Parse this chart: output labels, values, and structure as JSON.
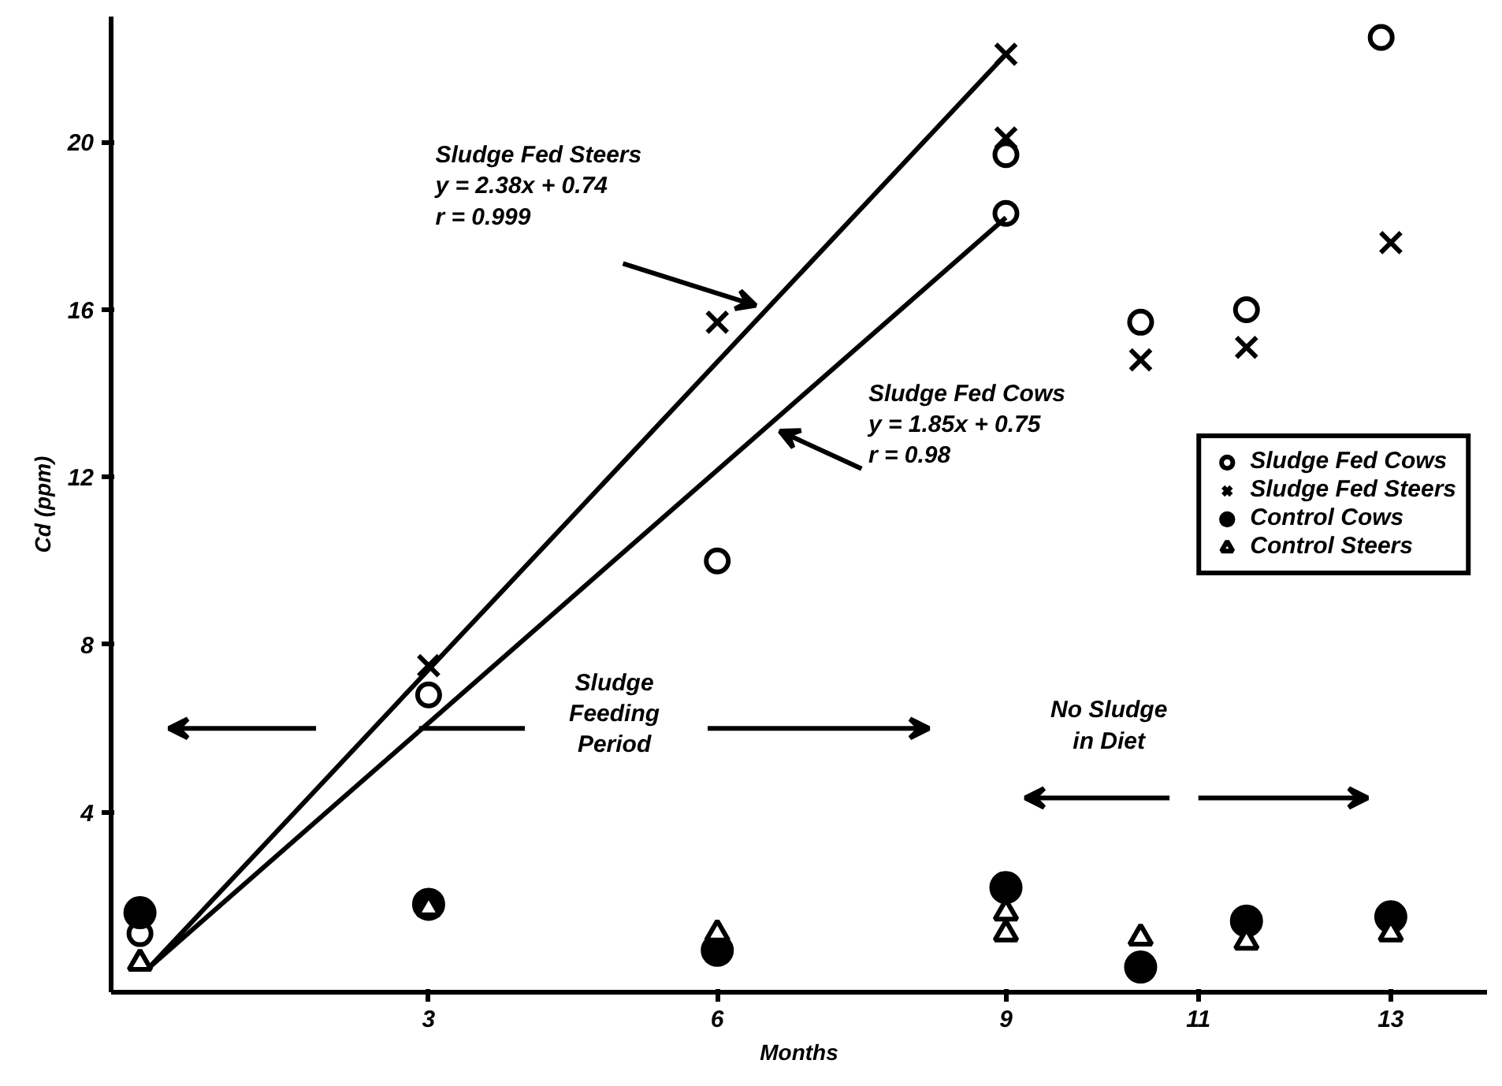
{
  "chart_data": {
    "type": "scatter",
    "xlabel": "Months",
    "ylabel": "Cd (ppm)",
    "xlim": [
      -0.3,
      14
    ],
    "ylim": [
      -0.3,
      23
    ],
    "xticks": [
      3,
      6,
      9,
      11,
      13
    ],
    "yticks": [
      4,
      8,
      12,
      16,
      20
    ],
    "grid": false,
    "legend": "right",
    "series": [
      {
        "name": "Sludge Fed Cows",
        "color": "#000000",
        "marker": "circle",
        "x": [
          0,
          3,
          6,
          9,
          9,
          10.4,
          11.5,
          12.9
        ],
        "values": [
          1.1,
          6.8,
          10.0,
          18.3,
          19.7,
          15.7,
          16.0,
          22.5
        ]
      },
      {
        "name": "Sludge Fed Steers",
        "color": "#000000",
        "marker": "cross",
        "x": [
          3,
          6,
          9,
          9,
          10.4,
          11.5,
          13
        ],
        "values": [
          7.5,
          15.7,
          22.1,
          20.1,
          14.8,
          15.1,
          17.6
        ]
      },
      {
        "name": "Control Cows",
        "color": "#000000",
        "marker": "circle",
        "x": [
          0,
          3,
          6,
          9,
          10.4,
          11.5,
          13
        ],
        "values": [
          1.6,
          1.8,
          0.7,
          2.2,
          0.3,
          1.4,
          1.5
        ]
      },
      {
        "name": "Control Steers",
        "color": "#000000",
        "marker": "triangle",
        "x": [
          0,
          3,
          6,
          9,
          9,
          10.4,
          11.5,
          13
        ],
        "values": [
          0.4,
          1.7,
          1.1,
          1.6,
          1.1,
          1.0,
          0.9,
          1.1
        ]
      },
      {
        "type": "line",
        "color": "#000000",
        "x": [
          0.1,
          9
        ],
        "values": [
          0.3,
          22.1
        ]
      },
      {
        "type": "line",
        "color": "#000000",
        "x": [
          0.1,
          9
        ],
        "values": [
          0.3,
          18.2
        ]
      }
    ],
    "annotations": [
      "Sludge Fed Steers\ny = 2.38x + 0.74\nr  = 0.999",
      "Sludge Fed Cows\ny = 1.85x + 0.75\nr  = 0.98",
      "Sludge\nFeeding\nPeriod",
      "No Sludge\nin Diet"
    ]
  }
}
